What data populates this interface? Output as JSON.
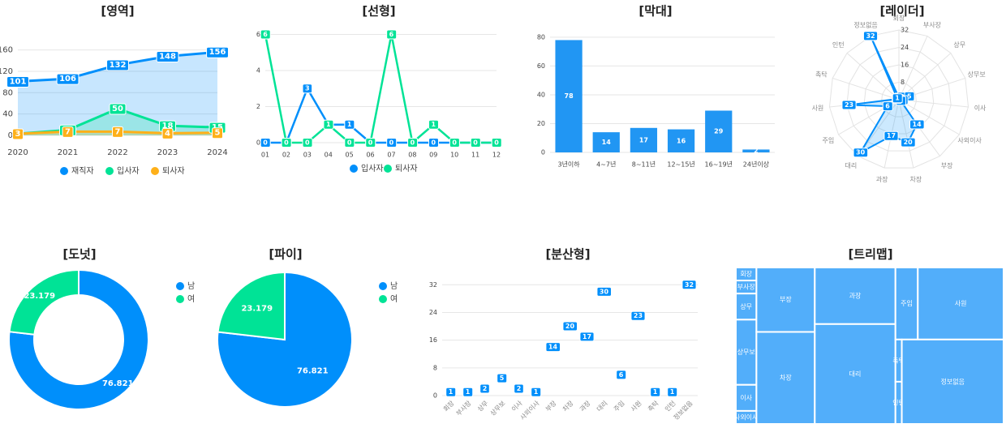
{
  "chart_data": [
    {
      "type": "area",
      "title": "[영역]",
      "categories": [
        "2020",
        "2021",
        "2022",
        "2023",
        "2024"
      ],
      "series": [
        {
          "name": "재직자",
          "color": "#008ffb",
          "values": [
            101,
            106,
            132,
            148,
            156
          ]
        },
        {
          "name": "입사자",
          "color": "#00e396",
          "values": [
            3,
            10,
            50,
            18,
            15
          ]
        },
        {
          "name": "퇴사자",
          "color": "#feb019",
          "values": [
            3,
            7,
            7,
            4,
            5
          ]
        }
      ],
      "ylim": [
        0,
        170
      ],
      "yticks": [
        0,
        40,
        80,
        120,
        160
      ]
    },
    {
      "type": "line",
      "title": "[선형]",
      "categories": [
        "01",
        "02",
        "03",
        "04",
        "05",
        "06",
        "07",
        "08",
        "09",
        "10",
        "11",
        "12"
      ],
      "series": [
        {
          "name": "입사자",
          "color": "#008ffb",
          "values": [
            0,
            0,
            3,
            1,
            1,
            0,
            0,
            0,
            0,
            0,
            0,
            0
          ]
        },
        {
          "name": "퇴사자",
          "color": "#00e396",
          "values": [
            6,
            0,
            0,
            1,
            0,
            0,
            6,
            0,
            1,
            0,
            0,
            0
          ]
        }
      ],
      "ylim": [
        0,
        6.2
      ],
      "yticks": [
        0,
        2,
        4,
        6
      ]
    },
    {
      "type": "bar",
      "title": "[막대]",
      "categories": [
        "3년이하",
        "4~7년",
        "8~11년",
        "12~15년",
        "16~19년",
        "24년이상"
      ],
      "values": [
        78,
        14,
        17,
        16,
        29,
        2
      ],
      "color": "#2196f3",
      "ylim": [
        0,
        85
      ],
      "yticks": [
        0,
        20,
        40,
        60,
        80
      ]
    },
    {
      "type": "radar",
      "title": "[레이더]",
      "categories": [
        "회장",
        "부사장",
        "상무",
        "상무보",
        "이사",
        "사외이사",
        "부장",
        "차장",
        "과장",
        "대리",
        "주임",
        "사원",
        "촉탁",
        "인턴",
        "정보없음"
      ],
      "values": [
        1,
        1,
        2,
        5,
        2,
        1,
        14,
        20,
        17,
        30,
        6,
        23,
        1,
        1,
        32
      ],
      "color": "#008ffb",
      "rlim": [
        0,
        32
      ],
      "rticks": [
        8,
        16,
        24,
        32
      ]
    },
    {
      "type": "donut",
      "title": "[도넛]",
      "categories": [
        "남",
        "여"
      ],
      "values": [
        76.821,
        23.179
      ],
      "colors": [
        "#008ffb",
        "#00e396"
      ]
    },
    {
      "type": "pie",
      "title": "[파이]",
      "categories": [
        "남",
        "여"
      ],
      "values": [
        76.821,
        23.179
      ],
      "colors": [
        "#008ffb",
        "#00e396"
      ]
    },
    {
      "type": "scatter",
      "title": "[분산형]",
      "categories": [
        "회장",
        "부사장",
        "상무",
        "상무보",
        "이사",
        "사외이사",
        "부장",
        "차장",
        "과장",
        "대리",
        "주임",
        "사원",
        "촉탁",
        "인턴",
        "정보없음"
      ],
      "values": [
        1,
        1,
        2,
        5,
        2,
        1,
        14,
        20,
        17,
        30,
        6,
        23,
        1,
        1,
        32
      ],
      "color": "#008ffb",
      "ylim": [
        0,
        33
      ],
      "yticks": [
        0,
        8,
        16,
        24,
        32
      ]
    },
    {
      "type": "treemap",
      "title": "[트리맵]",
      "categories": [
        "회장",
        "부사장",
        "상무",
        "상무보",
        "이사",
        "사외이사",
        "부장",
        "차장",
        "과장",
        "대리",
        "주임",
        "사원",
        "촉탁",
        "인턴",
        "정보없음"
      ],
      "values": [
        1,
        1,
        2,
        5,
        2,
        1,
        14,
        20,
        17,
        30,
        6,
        23,
        1,
        1,
        32
      ],
      "color": "#52aefa"
    }
  ]
}
